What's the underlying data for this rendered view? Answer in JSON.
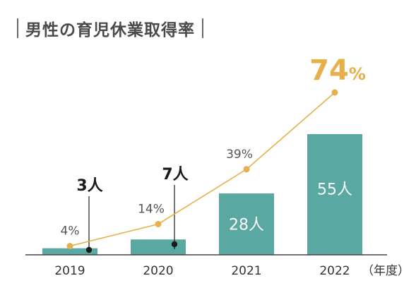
{
  "title": "男性の育児休業取得率",
  "colors": {
    "bar": "#5aa8a2",
    "line": "#e8b04a",
    "text": "#333333",
    "callout_dot": "#1a1a1a"
  },
  "chart_data": {
    "type": "bar",
    "title": "男性の育児休業取得率",
    "x_unit": "（年度）",
    "categories": [
      "2019",
      "2020",
      "2021",
      "2022"
    ],
    "bars": {
      "values": [
        3,
        7,
        28,
        55
      ],
      "labels": [
        "3人",
        "7人",
        "28人",
        "55人"
      ],
      "callout_categories": [
        "2019",
        "2020"
      ]
    },
    "line": {
      "type": "line",
      "values": [
        4,
        14,
        39,
        74
      ],
      "labels": [
        "4%",
        "14%",
        "39%",
        "74"
      ],
      "highlight_suffix": "%"
    },
    "bar_axis_max": 55,
    "line_axis_max": 74,
    "grid": false,
    "legend": "none"
  }
}
